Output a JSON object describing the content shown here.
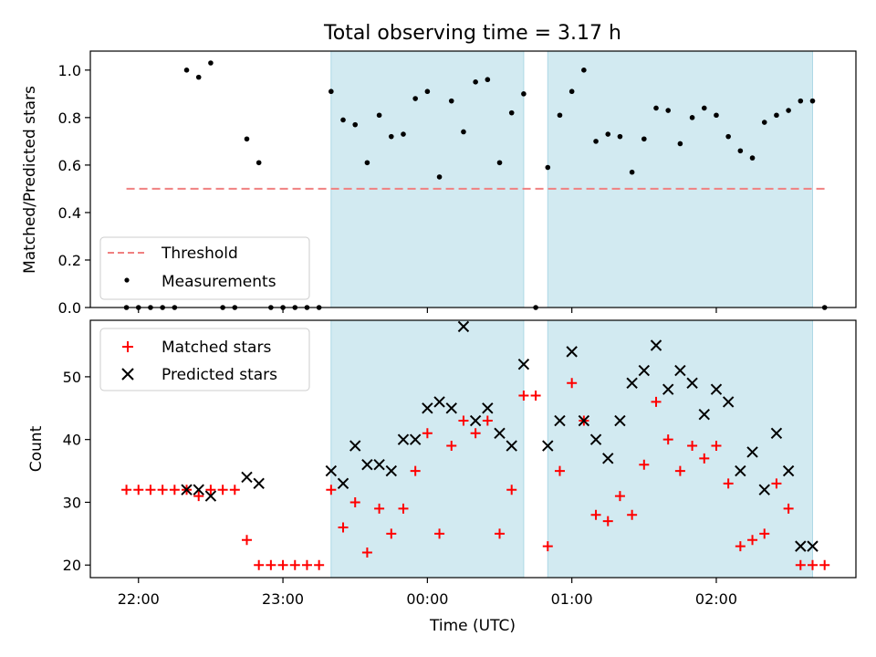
{
  "title": "Total observing time = 3.17 h",
  "colors": {
    "shade": "#add8e6",
    "threshold": "#f08080",
    "matched": "#ff0000",
    "predicted": "#000000",
    "measurement": "#000000"
  },
  "chart_data": [
    {
      "type": "scatter",
      "ylabel": "Matched/Predicted stars",
      "ylim": [
        0.0,
        1.08
      ],
      "yticks": [
        "0.0",
        "0.2",
        "0.4",
        "0.6",
        "0.8",
        "1.0"
      ],
      "xlim": [
        "21:40",
        "02:58"
      ],
      "xticks_shown": false,
      "shaded_intervals": [
        [
          "23:20",
          "00:40"
        ],
        [
          "00:50",
          "02:40"
        ]
      ],
      "legend_position": "lower left",
      "legend": [
        "Threshold",
        "Measurements"
      ],
      "threshold": {
        "name": "Threshold",
        "value": 0.5,
        "x_range": [
          "21:55",
          "02:45"
        ],
        "style": "dashed"
      },
      "series": [
        {
          "name": "Measurements",
          "points": [
            [
              "21:55",
              0
            ],
            [
              "22:00",
              0
            ],
            [
              "22:05",
              0
            ],
            [
              "22:10",
              0
            ],
            [
              "22:15",
              0
            ],
            [
              "22:20",
              1.0
            ],
            [
              "22:25",
              0.97
            ],
            [
              "22:30",
              1.03
            ],
            [
              "22:35",
              0
            ],
            [
              "22:40",
              0
            ],
            [
              "22:45",
              0.71
            ],
            [
              "22:50",
              0.61
            ],
            [
              "22:55",
              0
            ],
            [
              "23:00",
              0
            ],
            [
              "23:05",
              0
            ],
            [
              "23:10",
              0
            ],
            [
              "23:15",
              0
            ],
            [
              "23:20",
              0.91
            ],
            [
              "23:25",
              0.79
            ],
            [
              "23:30",
              0.77
            ],
            [
              "23:35",
              0.61
            ],
            [
              "23:40",
              0.81
            ],
            [
              "23:45",
              0.72
            ],
            [
              "23:50",
              0.73
            ],
            [
              "23:55",
              0.88
            ],
            [
              "00:00",
              0.91
            ],
            [
              "00:05",
              0.55
            ],
            [
              "00:10",
              0.87
            ],
            [
              "00:15",
              0.74
            ],
            [
              "00:20",
              0.95
            ],
            [
              "00:25",
              0.96
            ],
            [
              "00:30",
              0.61
            ],
            [
              "00:35",
              0.82
            ],
            [
              "00:40",
              0.9
            ],
            [
              "00:45",
              0
            ],
            [
              "00:50",
              0.59
            ],
            [
              "00:55",
              0.81
            ],
            [
              "01:00",
              0.91
            ],
            [
              "01:05",
              1.0
            ],
            [
              "01:10",
              0.7
            ],
            [
              "01:15",
              0.73
            ],
            [
              "01:20",
              0.72
            ],
            [
              "01:25",
              0.57
            ],
            [
              "01:30",
              0.71
            ],
            [
              "01:35",
              0.84
            ],
            [
              "01:40",
              0.83
            ],
            [
              "01:45",
              0.69
            ],
            [
              "01:50",
              0.8
            ],
            [
              "01:55",
              0.84
            ],
            [
              "02:00",
              0.81
            ],
            [
              "02:05",
              0.72
            ],
            [
              "02:10",
              0.66
            ],
            [
              "02:15",
              0.63
            ],
            [
              "02:20",
              0.78
            ],
            [
              "02:25",
              0.81
            ],
            [
              "02:30",
              0.83
            ],
            [
              "02:35",
              0.87
            ],
            [
              "02:40",
              0.87
            ],
            [
              "02:45",
              0
            ]
          ]
        }
      ]
    },
    {
      "type": "scatter",
      "xlabel": "Time (UTC)",
      "ylabel": "Count",
      "ylim": [
        18,
        59
      ],
      "yticks": [
        "20",
        "30",
        "40",
        "50"
      ],
      "xlim": [
        "21:40",
        "02:58"
      ],
      "xticks": [
        "22:00",
        "23:00",
        "00:00",
        "01:00",
        "02:00"
      ],
      "shaded_intervals": [
        [
          "23:20",
          "00:40"
        ],
        [
          "00:50",
          "02:40"
        ]
      ],
      "legend_position": "upper left",
      "legend": [
        "Matched stars",
        "Predicted stars"
      ],
      "series": [
        {
          "name": "Matched stars",
          "marker": "plus",
          "points": [
            [
              "21:55",
              32
            ],
            [
              "22:00",
              32
            ],
            [
              "22:05",
              32
            ],
            [
              "22:10",
              32
            ],
            [
              "22:15",
              32
            ],
            [
              "22:20",
              32
            ],
            [
              "22:25",
              31
            ],
            [
              "22:30",
              32
            ],
            [
              "22:35",
              32
            ],
            [
              "22:40",
              32
            ],
            [
              "22:45",
              24
            ],
            [
              "22:50",
              20
            ],
            [
              "22:55",
              20
            ],
            [
              "23:00",
              20
            ],
            [
              "23:05",
              20
            ],
            [
              "23:10",
              20
            ],
            [
              "23:15",
              20
            ],
            [
              "23:20",
              32
            ],
            [
              "23:25",
              26
            ],
            [
              "23:30",
              30
            ],
            [
              "23:35",
              22
            ],
            [
              "23:40",
              29
            ],
            [
              "23:45",
              25
            ],
            [
              "23:50",
              29
            ],
            [
              "23:55",
              35
            ],
            [
              "00:00",
              41
            ],
            [
              "00:05",
              25
            ],
            [
              "00:10",
              39
            ],
            [
              "00:15",
              43
            ],
            [
              "00:20",
              41
            ],
            [
              "00:25",
              43
            ],
            [
              "00:30",
              25
            ],
            [
              "00:35",
              32
            ],
            [
              "00:40",
              47
            ],
            [
              "00:45",
              47
            ],
            [
              "00:50",
              23
            ],
            [
              "00:55",
              35
            ],
            [
              "01:00",
              49
            ],
            [
              "01:05",
              43
            ],
            [
              "01:10",
              28
            ],
            [
              "01:15",
              27
            ],
            [
              "01:20",
              31
            ],
            [
              "01:25",
              28
            ],
            [
              "01:30",
              36
            ],
            [
              "01:35",
              46
            ],
            [
              "01:40",
              40
            ],
            [
              "01:45",
              35
            ],
            [
              "01:50",
              39
            ],
            [
              "01:55",
              37
            ],
            [
              "02:00",
              39
            ],
            [
              "02:05",
              33
            ],
            [
              "02:10",
              23
            ],
            [
              "02:15",
              24
            ],
            [
              "02:20",
              25
            ],
            [
              "02:25",
              33
            ],
            [
              "02:30",
              29
            ],
            [
              "02:35",
              20
            ],
            [
              "02:40",
              20
            ],
            [
              "02:45",
              20
            ]
          ]
        },
        {
          "name": "Predicted stars",
          "marker": "x",
          "points": [
            [
              "22:20",
              32
            ],
            [
              "22:25",
              32
            ],
            [
              "22:30",
              31
            ],
            [
              "22:45",
              34
            ],
            [
              "22:50",
              33
            ],
            [
              "23:20",
              35
            ],
            [
              "23:25",
              33
            ],
            [
              "23:30",
              39
            ],
            [
              "23:35",
              36
            ],
            [
              "23:40",
              36
            ],
            [
              "23:45",
              35
            ],
            [
              "23:50",
              40
            ],
            [
              "23:55",
              40
            ],
            [
              "00:00",
              45
            ],
            [
              "00:05",
              46
            ],
            [
              "00:10",
              45
            ],
            [
              "00:15",
              58
            ],
            [
              "00:20",
              43
            ],
            [
              "00:25",
              45
            ],
            [
              "00:30",
              41
            ],
            [
              "00:35",
              39
            ],
            [
              "00:40",
              52
            ],
            [
              "00:50",
              39
            ],
            [
              "00:55",
              43
            ],
            [
              "01:00",
              54
            ],
            [
              "01:05",
              43
            ],
            [
              "01:10",
              40
            ],
            [
              "01:15",
              37
            ],
            [
              "01:20",
              43
            ],
            [
              "01:25",
              49
            ],
            [
              "01:30",
              51
            ],
            [
              "01:35",
              55
            ],
            [
              "01:40",
              48
            ],
            [
              "01:45",
              51
            ],
            [
              "01:50",
              49
            ],
            [
              "01:55",
              44
            ],
            [
              "02:00",
              48
            ],
            [
              "02:05",
              46
            ],
            [
              "02:10",
              35
            ],
            [
              "02:15",
              38
            ],
            [
              "02:20",
              32
            ],
            [
              "02:25",
              41
            ],
            [
              "02:30",
              35
            ],
            [
              "02:35",
              23
            ],
            [
              "02:40",
              23
            ]
          ]
        }
      ]
    }
  ]
}
